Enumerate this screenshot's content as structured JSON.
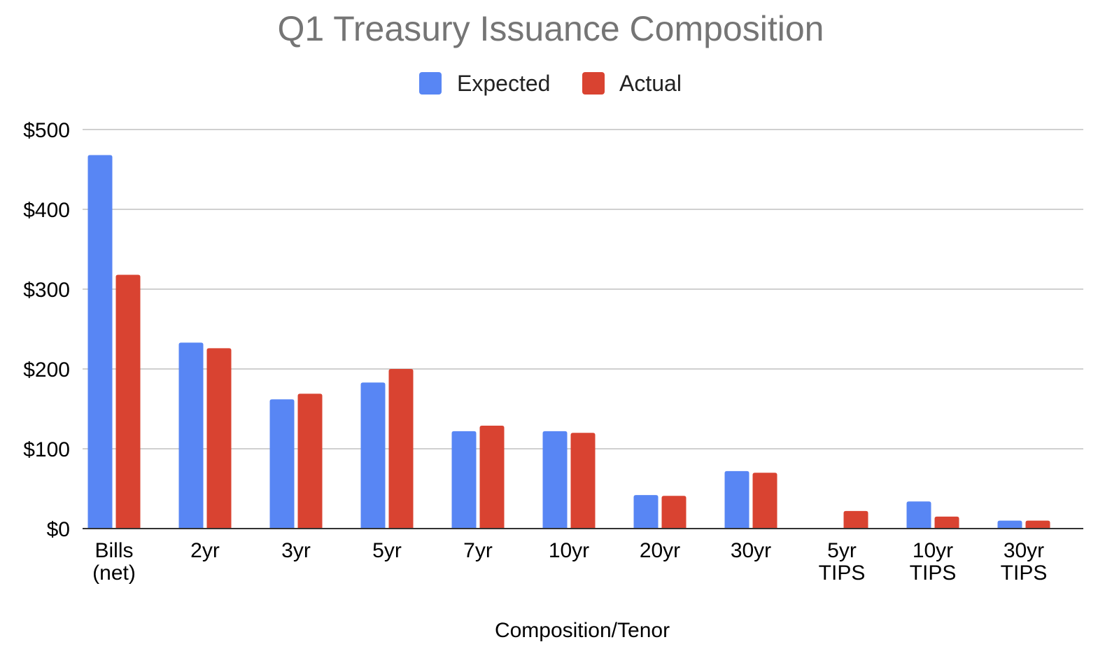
{
  "chart_data": {
    "type": "bar",
    "title": "Q1 Treasury Issuance Composition",
    "xlabel": "Composition/Tenor",
    "ylabel": "",
    "categories": [
      "Bills (net)",
      "2yr",
      "3yr",
      "5yr",
      "7yr",
      "10yr",
      "20yr",
      "30yr",
      "5yr TIPS",
      "10yr TIPS",
      "30yr TIPS"
    ],
    "series": [
      {
        "name": "Expected",
        "color": "#5886f4",
        "values": [
          468,
          233,
          162,
          183,
          122,
          122,
          42,
          72,
          0,
          34,
          10
        ]
      },
      {
        "name": "Actual",
        "color": "#d94331",
        "values": [
          318,
          226,
          169,
          200,
          129,
          120,
          41,
          70,
          22,
          15,
          10
        ]
      }
    ],
    "ylim": [
      0,
      500
    ],
    "yticks": [
      "$0",
      "$100",
      "$200",
      "$300",
      "$400",
      "$500"
    ],
    "ytick_values": [
      0,
      100,
      200,
      300,
      400,
      500
    ],
    "grid": true,
    "legend_position": "top-center"
  }
}
